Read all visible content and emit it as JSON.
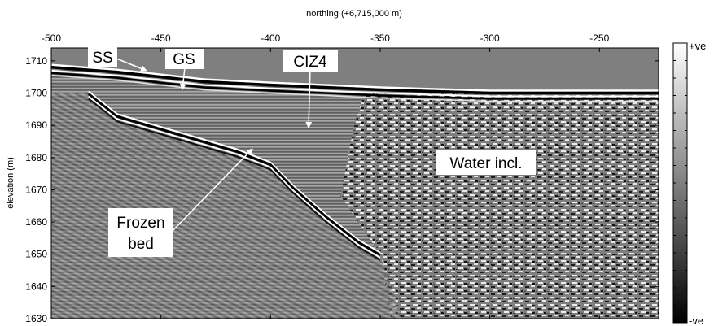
{
  "chart_data": {
    "type": "heatmap",
    "title": "",
    "xlabel": "northing (+6,715,000 m)",
    "ylabel": "elevation (m)",
    "x_axis_position": "top",
    "xlim": [
      -500,
      -223
    ],
    "ylim": [
      1630,
      1714
    ],
    "x_ticks": [
      "-500",
      "-450",
      "-400",
      "-350",
      "-300",
      "-250"
    ],
    "y_ticks": [
      "1710",
      "1700",
      "1690",
      "1680",
      "1670",
      "1660",
      "1650",
      "1640",
      "1630"
    ],
    "colorbar": {
      "max_label": "+ve",
      "min_label": "-ve",
      "colormap": "gray",
      "max_color": "#ffffff",
      "min_color": "#000000"
    },
    "background_color": "#7f7f7f",
    "horizons": [
      {
        "name": "surface reflection",
        "points": [
          [
            -500,
            1708
          ],
          [
            -470,
            1706.5
          ],
          [
            -430,
            1703.5
          ],
          [
            -400,
            1702.5
          ],
          [
            -350,
            1701
          ],
          [
            -300,
            1700
          ],
          [
            -250,
            1700
          ],
          [
            -223,
            1700
          ]
        ]
      },
      {
        "name": "frozen bed reflection",
        "points": [
          [
            -483,
            1700
          ],
          [
            -470,
            1693
          ],
          [
            -450,
            1689
          ],
          [
            -430,
            1685
          ],
          [
            -415,
            1682
          ],
          [
            -400,
            1678
          ],
          [
            -390,
            1671
          ],
          [
            -375,
            1662
          ],
          [
            -360,
            1654
          ],
          [
            -350,
            1650
          ]
        ]
      }
    ],
    "annotations": [
      {
        "text": "SS",
        "x": -476,
        "y": 1705
      },
      {
        "text": "GS",
        "x": -430,
        "y": 1700
      },
      {
        "text": "CIZ4",
        "x": -381,
        "y": 1690
      },
      {
        "text": "Water incl.",
        "x": -315,
        "y": 1676
      },
      {
        "text": "Frozen\nbed",
        "x": -406,
        "y": 1683
      }
    ],
    "labels": {
      "ss": "SS",
      "gs": "GS",
      "ciz4": "CIZ4",
      "water": "Water incl.",
      "frozen_line1": "Frozen",
      "frozen_line2": "bed"
    }
  }
}
